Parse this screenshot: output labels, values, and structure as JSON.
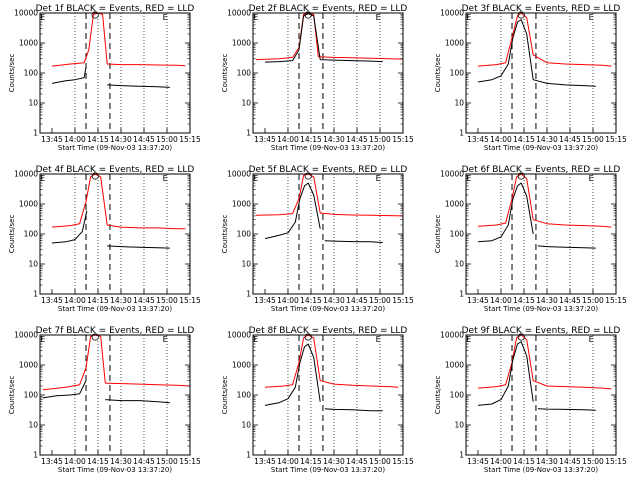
{
  "figure": {
    "background": "#ffffff"
  },
  "colors": {
    "events": "#000000",
    "lld": "#ff0000",
    "axes": "#000000"
  },
  "chart_data": [
    {
      "type": "line",
      "title": "Det 1f BLACK = Events, RED = LLD",
      "xlabel": "Start Time (09-Nov-03 13:37:20)",
      "ylabel": "Counts/sec",
      "x_ticks": [
        "13:45",
        "14:00",
        "14:15",
        "14:30",
        "14:45",
        "15:00",
        "15:15"
      ],
      "y_ticks": [
        "1",
        "10",
        "100",
        "1000",
        "10000"
      ],
      "xlim": [
        13.62,
        15.25
      ],
      "ylim": [
        1,
        10000
      ],
      "yscale": "log",
      "markers": {
        "S": 14.22,
        "E_left": 13.65,
        "E_right": 14.98
      },
      "series": [
        {
          "kind": "lld",
          "x": [
            13.75,
            13.95,
            14.1,
            14.15,
            14.2,
            14.25,
            14.3,
            14.35,
            14.5,
            14.7,
            14.9,
            15.1,
            15.2
          ],
          "y": [
            170,
            200,
            220,
            600,
            9000,
            10000,
            9000,
            200,
            190,
            190,
            185,
            180,
            175
          ]
        },
        {
          "kind": "events",
          "x": [
            13.75,
            13.9,
            14.0,
            14.1,
            14.12
          ],
          "y": [
            45,
            55,
            60,
            70,
            160
          ]
        },
        {
          "kind": "events",
          "x": [
            14.35,
            14.5,
            14.7,
            14.9,
            15.03
          ],
          "y": [
            40,
            38,
            36,
            35,
            33
          ]
        }
      ]
    },
    {
      "type": "line",
      "title": "Det 2f BLACK = Events, RED = LLD",
      "xlabel": "Start Time (09-Nov-03 13:37:20)",
      "ylabel": "Counts/sec",
      "x_ticks": [
        "13:45",
        "14:00",
        "14:15",
        "14:30",
        "14:45",
        "15:00",
        "15:15"
      ],
      "y_ticks": [
        "1",
        "10",
        "100",
        "1000",
        "10000"
      ],
      "xlim": [
        13.62,
        15.25
      ],
      "ylim": [
        1,
        10000
      ],
      "yscale": "log",
      "markers": {
        "S": 14.22,
        "E_left": 13.65,
        "E_right": 14.98
      },
      "series": [
        {
          "kind": "lld",
          "x": [
            13.65,
            13.9,
            14.05,
            14.12,
            14.17,
            14.22,
            14.28,
            14.33,
            14.5,
            14.7,
            14.9,
            15.1,
            15.25
          ],
          "y": [
            280,
            300,
            330,
            700,
            9000,
            10000,
            9000,
            350,
            330,
            320,
            310,
            300,
            290
          ]
        },
        {
          "kind": "events",
          "x": [
            13.75,
            13.9,
            14.05,
            14.12,
            14.17,
            14.22,
            14.28,
            14.35,
            14.5,
            14.7,
            14.9,
            15.03
          ],
          "y": [
            230,
            240,
            260,
            600,
            8000,
            9500,
            8000,
            280,
            270,
            260,
            250,
            240
          ]
        }
      ]
    },
    {
      "type": "line",
      "title": "Det 3f BLACK = Events, RED = LLD",
      "xlabel": "Start Time (09-Nov-03 13:37:20)",
      "ylabel": "Counts/sec",
      "x_ticks": [
        "13:45",
        "14:00",
        "14:15",
        "14:30",
        "14:45",
        "15:00",
        "15:15"
      ],
      "y_ticks": [
        "1",
        "10",
        "100",
        "1000",
        "10000"
      ],
      "xlim": [
        13.62,
        15.25
      ],
      "ylim": [
        1,
        10000
      ],
      "yscale": "log",
      "markers": {
        "S": 14.22,
        "E_left": 13.65,
        "E_right": 14.98
      },
      "series": [
        {
          "kind": "lld",
          "x": [
            13.75,
            13.95,
            14.05,
            14.12,
            14.18,
            14.22,
            14.28,
            14.35,
            14.5,
            14.7,
            14.9,
            15.1,
            15.2
          ],
          "y": [
            170,
            190,
            220,
            1500,
            8000,
            10000,
            7000,
            400,
            220,
            200,
            190,
            180,
            170
          ]
        },
        {
          "kind": "events",
          "x": [
            13.75,
            13.9,
            14.0,
            14.08,
            14.13,
            14.18,
            14.22,
            14.28,
            14.35,
            14.5,
            14.7,
            14.9,
            15.03
          ],
          "y": [
            50,
            60,
            80,
            200,
            1500,
            5000,
            6000,
            2000,
            60,
            45,
            40,
            38,
            36
          ]
        }
      ]
    },
    {
      "type": "line",
      "title": "Det 4f BLACK = Events, RED = LLD",
      "xlabel": "Start Time (09-Nov-03 13:37:20)",
      "ylabel": "Counts/sec",
      "x_ticks": [
        "13:45",
        "14:00",
        "14:15",
        "14:30",
        "14:45",
        "15:00",
        "15:15"
      ],
      "y_ticks": [
        "1",
        "10",
        "100",
        "1000",
        "10000"
      ],
      "xlim": [
        13.62,
        15.25
      ],
      "ylim": [
        1,
        10000
      ],
      "yscale": "log",
      "markers": {
        "S": 14.22,
        "E_left": 13.65,
        "E_right": 14.98
      },
      "series": [
        {
          "kind": "lld",
          "x": [
            13.75,
            13.95,
            14.05,
            14.12,
            14.17,
            14.22,
            14.28,
            14.35,
            14.5,
            14.7,
            14.9,
            15.1,
            15.2
          ],
          "y": [
            170,
            190,
            220,
            1200,
            8000,
            10000,
            8000,
            200,
            170,
            160,
            160,
            150,
            150
          ]
        },
        {
          "kind": "events",
          "x": [
            13.75,
            13.9,
            14.0,
            14.08,
            14.13
          ],
          "y": [
            50,
            55,
            65,
            120,
            600
          ]
        },
        {
          "kind": "events",
          "x": [
            14.35,
            14.5,
            14.7,
            14.9,
            15.03
          ],
          "y": [
            40,
            38,
            36,
            35,
            34
          ]
        }
      ]
    },
    {
      "type": "line",
      "title": "Det 5f BLACK = Events, RED = LLD",
      "xlabel": "Start Time (09-Nov-03 13:37:20)",
      "ylabel": "Counts/sec",
      "x_ticks": [
        "13:45",
        "14:00",
        "14:15",
        "14:30",
        "14:45",
        "15:00",
        "15:15"
      ],
      "y_ticks": [
        "1",
        "10",
        "100",
        "1000",
        "10000"
      ],
      "xlim": [
        13.62,
        15.25
      ],
      "ylim": [
        1,
        10000
      ],
      "yscale": "log",
      "markers": {
        "S": 14.22,
        "E_left": 13.65,
        "E_right": 14.98
      },
      "series": [
        {
          "kind": "lld",
          "x": [
            13.65,
            13.9,
            14.05,
            14.12,
            14.17,
            14.22,
            14.28,
            14.35,
            14.5,
            14.7,
            14.9,
            15.1,
            15.25
          ],
          "y": [
            420,
            440,
            480,
            1500,
            9000,
            10000,
            8000,
            500,
            450,
            430,
            420,
            410,
            400
          ]
        },
        {
          "kind": "events",
          "x": [
            13.75,
            13.9,
            14.0,
            14.08,
            14.13,
            14.18,
            14.22,
            14.28,
            14.35
          ],
          "y": [
            70,
            90,
            110,
            250,
            1500,
            4000,
            5000,
            2000,
            150
          ]
        },
        {
          "kind": "events",
          "x": [
            14.4,
            14.5,
            14.7,
            14.9,
            15.03
          ],
          "y": [
            60,
            58,
            56,
            55,
            52
          ]
        }
      ]
    },
    {
      "type": "line",
      "title": "Det 6f BLACK = Events, RED = LLD",
      "xlabel": "Start Time (09-Nov-03 13:37:20)",
      "ylabel": "Counts/sec",
      "x_ticks": [
        "13:45",
        "14:00",
        "14:15",
        "14:30",
        "14:45",
        "15:00",
        "15:15"
      ],
      "y_ticks": [
        "1",
        "10",
        "100",
        "1000",
        "10000"
      ],
      "xlim": [
        13.62,
        15.25
      ],
      "ylim": [
        1,
        10000
      ],
      "yscale": "log",
      "markers": {
        "S": 14.22,
        "E_left": 13.65,
        "E_right": 14.98
      },
      "series": [
        {
          "kind": "lld",
          "x": [
            13.75,
            13.95,
            14.05,
            14.12,
            14.17,
            14.22,
            14.28,
            14.35,
            14.5,
            14.7,
            14.9,
            15.1,
            15.2
          ],
          "y": [
            180,
            200,
            230,
            1500,
            8000,
            10000,
            7000,
            300,
            220,
            200,
            190,
            180,
            170
          ]
        },
        {
          "kind": "events",
          "x": [
            13.75,
            13.9,
            14.0,
            14.08,
            14.13,
            14.18,
            14.22,
            14.28,
            14.35
          ],
          "y": [
            55,
            60,
            80,
            200,
            1500,
            4000,
            5000,
            1800,
            100
          ]
        },
        {
          "kind": "events",
          "x": [
            14.4,
            14.5,
            14.7,
            14.9,
            15.03
          ],
          "y": [
            40,
            38,
            36,
            35,
            34
          ]
        }
      ]
    },
    {
      "type": "line",
      "title": "Det 7f BLACK = Events, RED = LLD",
      "xlabel": "Start Time (09-Nov-03 13:37:20)",
      "ylabel": "Counts/sec",
      "x_ticks": [
        "13:45",
        "14:00",
        "14:15",
        "14:30",
        "14:45",
        "15:00",
        "15:15"
      ],
      "y_ticks": [
        "1",
        "10",
        "100",
        "1000",
        "10000"
      ],
      "xlim": [
        13.62,
        15.25
      ],
      "ylim": [
        1,
        10000
      ],
      "yscale": "log",
      "markers": {
        "S": 14.22,
        "E_left": 13.65,
        "E_right": 14.98
      },
      "series": [
        {
          "kind": "lld",
          "x": [
            13.65,
            13.9,
            14.05,
            14.12,
            14.17,
            14.22,
            14.28,
            14.33,
            14.5,
            14.7,
            14.9,
            15.1,
            15.25
          ],
          "y": [
            150,
            180,
            220,
            800,
            9000,
            10000,
            9000,
            250,
            240,
            230,
            220,
            210,
            200
          ]
        },
        {
          "kind": "events",
          "x": [
            13.65,
            13.8,
            13.95,
            14.05,
            14.12
          ],
          "y": [
            80,
            95,
            100,
            110,
            300
          ]
        },
        {
          "kind": "events",
          "x": [
            14.33,
            14.5,
            14.7,
            14.9,
            15.03
          ],
          "y": [
            70,
            65,
            65,
            60,
            55
          ]
        }
      ]
    },
    {
      "type": "line",
      "title": "Det 8f BLACK = Events, RED = LLD",
      "xlabel": "Start Time (09-Nov-03 13:37:20)",
      "ylabel": "Counts/sec",
      "x_ticks": [
        "13:45",
        "14:00",
        "14:15",
        "14:30",
        "14:45",
        "15:00",
        "15:15"
      ],
      "y_ticks": [
        "1",
        "10",
        "100",
        "1000",
        "10000"
      ],
      "xlim": [
        13.62,
        15.25
      ],
      "ylim": [
        1,
        10000
      ],
      "yscale": "log",
      "markers": {
        "S": 14.22,
        "E_left": 13.65,
        "E_right": 14.98
      },
      "series": [
        {
          "kind": "lld",
          "x": [
            13.75,
            13.95,
            14.05,
            14.12,
            14.17,
            14.22,
            14.28,
            14.35,
            14.5,
            14.7,
            14.9,
            15.1,
            15.2
          ],
          "y": [
            180,
            200,
            220,
            1200,
            8000,
            10000,
            8000,
            300,
            230,
            210,
            200,
            190,
            180
          ]
        },
        {
          "kind": "events",
          "x": [
            13.75,
            13.9,
            14.0,
            14.08,
            14.13,
            14.18,
            14.22,
            14.28,
            14.35
          ],
          "y": [
            45,
            55,
            75,
            180,
            1200,
            4000,
            5000,
            1800,
            60
          ]
        },
        {
          "kind": "events",
          "x": [
            14.4,
            14.5,
            14.7,
            14.9,
            15.03
          ],
          "y": [
            35,
            33,
            32,
            30,
            30
          ]
        }
      ]
    },
    {
      "type": "line",
      "title": "Det 9f BLACK = Events, RED = LLD",
      "xlabel": "Start Time (09-Nov-03 13:37:20)",
      "ylabel": "Counts/sec",
      "x_ticks": [
        "13:45",
        "14:00",
        "14:15",
        "14:30",
        "14:45",
        "15:00",
        "15:15"
      ],
      "y_ticks": [
        "1",
        "10",
        "100",
        "1000",
        "10000"
      ],
      "xlim": [
        13.62,
        15.25
      ],
      "ylim": [
        1,
        10000
      ],
      "yscale": "log",
      "markers": {
        "S": 14.22,
        "E_left": 13.65,
        "E_right": 14.98
      },
      "series": [
        {
          "kind": "lld",
          "x": [
            13.75,
            13.95,
            14.05,
            14.12,
            14.17,
            14.22,
            14.28,
            14.35,
            14.5,
            14.7,
            14.9,
            15.1,
            15.2
          ],
          "y": [
            170,
            190,
            220,
            1200,
            8000,
            10000,
            7000,
            300,
            200,
            190,
            180,
            170,
            160
          ]
        },
        {
          "kind": "events",
          "x": [
            13.75,
            13.9,
            14.0,
            14.08,
            14.13,
            14.18,
            14.22,
            14.28,
            14.35
          ],
          "y": [
            45,
            50,
            70,
            200,
            1500,
            5000,
            6000,
            2000,
            60
          ]
        },
        {
          "kind": "events",
          "x": [
            14.4,
            14.5,
            14.7,
            14.9,
            15.03
          ],
          "y": [
            35,
            34,
            33,
            32,
            31
          ]
        }
      ]
    }
  ]
}
